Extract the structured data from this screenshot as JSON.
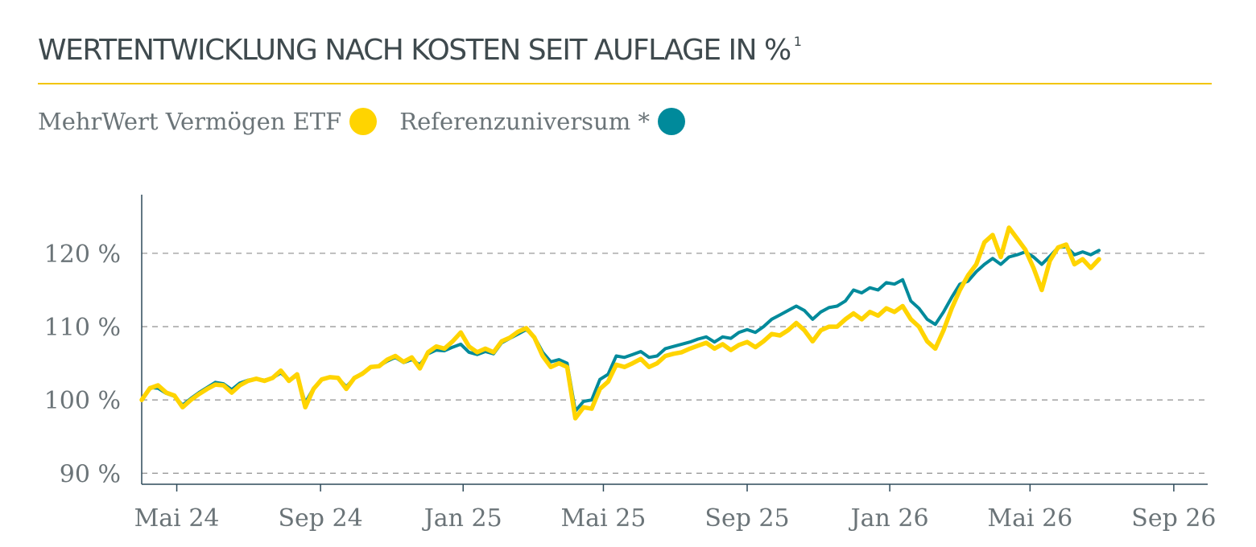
{
  "header": {
    "title": "WERTENTWICKLUNG NACH KOSTEN SEIT AUFLAGE IN %",
    "footnote": "1"
  },
  "legend": [
    {
      "label": "MehrWert Vermögen ETF",
      "color": "#ffd400"
    },
    {
      "label": "Referenzuniversum *",
      "color": "#008a9b"
    }
  ],
  "chart_data": {
    "type": "line",
    "grid": "horizontal dashed",
    "legend_position": "top-left",
    "xlim": [
      "2024-04-01",
      "2026-09-30"
    ],
    "ylim": [
      88.5,
      128
    ],
    "y_ticks": [
      {
        "value": 90,
        "label": "90 %"
      },
      {
        "value": 100,
        "label": "100 %"
      },
      {
        "value": 110,
        "label": "110 %"
      },
      {
        "value": 120,
        "label": "120 %"
      }
    ],
    "x_ticks": [
      {
        "date": "2024-05-01",
        "label": "Mai 24"
      },
      {
        "date": "2024-09-01",
        "label": "Sep 24"
      },
      {
        "date": "2025-01-01",
        "label": "Jan 25"
      },
      {
        "date": "2025-05-01",
        "label": "Mai 25"
      },
      {
        "date": "2025-09-01",
        "label": "Sep 25"
      },
      {
        "date": "2026-01-01",
        "label": "Jan 26"
      },
      {
        "date": "2026-05-01",
        "label": "Mai 26"
      },
      {
        "date": "2026-09-01",
        "label": "Sep 26"
      }
    ],
    "series": [
      {
        "name": "MehrWert Vermögen ETF",
        "color": "#ffd400",
        "points": [
          [
            "2024-04-01",
            100.0
          ],
          [
            "2024-04-08",
            101.6
          ],
          [
            "2024-04-15",
            102.0
          ],
          [
            "2024-04-22",
            101.0
          ],
          [
            "2024-04-29",
            100.6
          ],
          [
            "2024-05-06",
            99.0
          ],
          [
            "2024-05-13",
            100.0
          ],
          [
            "2024-05-20",
            100.8
          ],
          [
            "2024-05-27",
            101.5
          ],
          [
            "2024-06-03",
            102.1
          ],
          [
            "2024-06-10",
            102.0
          ],
          [
            "2024-06-17",
            101.0
          ],
          [
            "2024-06-24",
            102.0
          ],
          [
            "2024-07-01",
            102.6
          ],
          [
            "2024-07-08",
            102.9
          ],
          [
            "2024-07-15",
            102.6
          ],
          [
            "2024-07-22",
            103.0
          ],
          [
            "2024-07-29",
            104.0
          ],
          [
            "2024-08-05",
            102.6
          ],
          [
            "2024-08-12",
            103.5
          ],
          [
            "2024-08-19",
            99.0
          ],
          [
            "2024-08-26",
            101.5
          ],
          [
            "2024-09-02",
            102.8
          ],
          [
            "2024-09-09",
            103.1
          ],
          [
            "2024-09-16",
            103.0
          ],
          [
            "2024-09-23",
            101.5
          ],
          [
            "2024-09-30",
            103.0
          ],
          [
            "2024-10-07",
            103.6
          ],
          [
            "2024-10-14",
            104.5
          ],
          [
            "2024-10-21",
            104.6
          ],
          [
            "2024-10-28",
            105.5
          ],
          [
            "2024-11-04",
            106.0
          ],
          [
            "2024-11-11",
            105.2
          ],
          [
            "2024-11-18",
            105.8
          ],
          [
            "2024-11-25",
            104.3
          ],
          [
            "2024-12-02",
            106.5
          ],
          [
            "2024-12-09",
            107.3
          ],
          [
            "2024-12-16",
            107.0
          ],
          [
            "2024-12-23",
            108.0
          ],
          [
            "2024-12-30",
            109.2
          ],
          [
            "2025-01-06",
            107.3
          ],
          [
            "2025-01-13",
            106.5
          ],
          [
            "2025-01-20",
            107.0
          ],
          [
            "2025-01-27",
            106.5
          ],
          [
            "2025-02-03",
            108.0
          ],
          [
            "2025-02-10",
            108.5
          ],
          [
            "2025-02-17",
            109.3
          ],
          [
            "2025-02-24",
            109.8
          ],
          [
            "2025-03-03",
            108.5
          ],
          [
            "2025-03-10",
            106.0
          ],
          [
            "2025-03-17",
            104.5
          ],
          [
            "2025-03-24",
            105.0
          ],
          [
            "2025-03-31",
            104.5
          ],
          [
            "2025-04-07",
            97.5
          ],
          [
            "2025-04-14",
            99.0
          ],
          [
            "2025-04-21",
            98.8
          ],
          [
            "2025-04-28",
            101.5
          ],
          [
            "2025-05-05",
            102.5
          ],
          [
            "2025-05-12",
            104.8
          ],
          [
            "2025-05-19",
            104.5
          ],
          [
            "2025-05-26",
            105.0
          ],
          [
            "2025-06-02",
            105.6
          ],
          [
            "2025-06-09",
            104.5
          ],
          [
            "2025-06-16",
            105.0
          ],
          [
            "2025-06-23",
            106.0
          ],
          [
            "2025-06-30",
            106.3
          ],
          [
            "2025-07-07",
            106.5
          ],
          [
            "2025-07-14",
            107.0
          ],
          [
            "2025-07-21",
            107.4
          ],
          [
            "2025-07-28",
            107.8
          ],
          [
            "2025-08-04",
            107.0
          ],
          [
            "2025-08-11",
            107.6
          ],
          [
            "2025-08-18",
            106.8
          ],
          [
            "2025-08-25",
            107.5
          ],
          [
            "2025-09-01",
            107.9
          ],
          [
            "2025-09-08",
            107.2
          ],
          [
            "2025-09-15",
            108.0
          ],
          [
            "2025-09-22",
            109.0
          ],
          [
            "2025-09-29",
            108.8
          ],
          [
            "2025-10-06",
            109.5
          ],
          [
            "2025-10-13",
            110.5
          ],
          [
            "2025-10-20",
            109.5
          ],
          [
            "2025-10-27",
            108.0
          ],
          [
            "2025-11-03",
            109.5
          ],
          [
            "2025-11-10",
            110.0
          ],
          [
            "2025-11-17",
            110.0
          ],
          [
            "2025-11-24",
            111.0
          ],
          [
            "2025-12-01",
            111.8
          ],
          [
            "2025-12-08",
            111.0
          ],
          [
            "2025-12-15",
            112.0
          ],
          [
            "2025-12-22",
            111.5
          ],
          [
            "2025-12-29",
            112.5
          ],
          [
            "2026-01-05",
            112.0
          ],
          [
            "2026-01-12",
            112.8
          ],
          [
            "2026-01-19",
            111.0
          ],
          [
            "2026-01-26",
            110.0
          ],
          [
            "2026-02-02",
            108.0
          ],
          [
            "2026-02-09",
            107.0
          ],
          [
            "2026-02-16",
            109.5
          ],
          [
            "2026-02-23",
            112.5
          ],
          [
            "2026-03-02",
            115.0
          ],
          [
            "2026-03-09",
            117.0
          ],
          [
            "2026-03-16",
            118.5
          ],
          [
            "2026-03-23",
            121.5
          ],
          [
            "2026-03-30",
            122.5
          ],
          [
            "2026-04-06",
            119.5
          ],
          [
            "2026-04-13",
            123.5
          ],
          [
            "2026-04-20",
            122.0
          ],
          [
            "2026-04-27",
            120.5
          ],
          [
            "2026-05-04",
            118.0
          ],
          [
            "2026-05-11",
            115.0
          ],
          [
            "2026-05-18",
            119.0
          ],
          [
            "2026-05-25",
            120.8
          ],
          [
            "2026-06-01",
            121.2
          ],
          [
            "2026-06-08",
            118.5
          ],
          [
            "2026-06-15",
            119.2
          ],
          [
            "2026-06-22",
            118.0
          ],
          [
            "2026-06-29",
            119.2
          ]
        ]
      },
      {
        "name": "Referenzuniversum *",
        "color": "#008a9b",
        "points": [
          [
            "2024-04-01",
            100.0
          ],
          [
            "2024-04-08",
            101.7
          ],
          [
            "2024-04-15",
            101.6
          ],
          [
            "2024-04-22",
            100.9
          ],
          [
            "2024-04-29",
            100.5
          ],
          [
            "2024-05-06",
            99.3
          ],
          [
            "2024-05-13",
            100.2
          ],
          [
            "2024-05-20",
            101.0
          ],
          [
            "2024-05-27",
            101.7
          ],
          [
            "2024-06-03",
            102.4
          ],
          [
            "2024-06-10",
            102.2
          ],
          [
            "2024-06-17",
            101.4
          ],
          [
            "2024-06-24",
            102.3
          ],
          [
            "2024-07-01",
            102.7
          ],
          [
            "2024-07-08",
            102.9
          ],
          [
            "2024-07-15",
            102.7
          ],
          [
            "2024-07-22",
            103.0
          ],
          [
            "2024-07-29",
            103.7
          ],
          [
            "2024-08-05",
            102.7
          ],
          [
            "2024-08-12",
            103.3
          ],
          [
            "2024-08-19",
            99.6
          ],
          [
            "2024-08-26",
            101.6
          ],
          [
            "2024-09-02",
            102.8
          ],
          [
            "2024-09-09",
            103.1
          ],
          [
            "2024-09-16",
            103.0
          ],
          [
            "2024-09-23",
            101.8
          ],
          [
            "2024-09-30",
            103.0
          ],
          [
            "2024-10-07",
            103.7
          ],
          [
            "2024-10-14",
            104.5
          ],
          [
            "2024-10-21",
            104.6
          ],
          [
            "2024-10-28",
            105.3
          ],
          [
            "2024-11-04",
            105.8
          ],
          [
            "2024-11-11",
            105.1
          ],
          [
            "2024-11-18",
            105.5
          ],
          [
            "2024-11-25",
            104.8
          ],
          [
            "2024-12-02",
            106.3
          ],
          [
            "2024-12-09",
            106.8
          ],
          [
            "2024-12-16",
            106.7
          ],
          [
            "2024-12-23",
            107.2
          ],
          [
            "2024-12-30",
            107.6
          ],
          [
            "2025-01-06",
            106.5
          ],
          [
            "2025-01-13",
            106.2
          ],
          [
            "2025-01-20",
            106.6
          ],
          [
            "2025-01-27",
            106.3
          ],
          [
            "2025-02-03",
            107.8
          ],
          [
            "2025-02-10",
            108.4
          ],
          [
            "2025-02-17",
            109.0
          ],
          [
            "2025-02-24",
            109.6
          ],
          [
            "2025-03-03",
            108.6
          ],
          [
            "2025-03-10",
            106.5
          ],
          [
            "2025-03-17",
            105.2
          ],
          [
            "2025-03-24",
            105.5
          ],
          [
            "2025-03-31",
            105.0
          ],
          [
            "2025-04-07",
            98.5
          ],
          [
            "2025-04-14",
            99.8
          ],
          [
            "2025-04-21",
            100.0
          ],
          [
            "2025-04-28",
            102.8
          ],
          [
            "2025-05-05",
            103.5
          ],
          [
            "2025-05-12",
            106.0
          ],
          [
            "2025-05-19",
            105.8
          ],
          [
            "2025-05-26",
            106.2
          ],
          [
            "2025-06-02",
            106.6
          ],
          [
            "2025-06-09",
            105.8
          ],
          [
            "2025-06-16",
            106.0
          ],
          [
            "2025-06-23",
            107.0
          ],
          [
            "2025-06-30",
            107.3
          ],
          [
            "2025-07-07",
            107.6
          ],
          [
            "2025-07-14",
            107.9
          ],
          [
            "2025-07-21",
            108.3
          ],
          [
            "2025-07-28",
            108.6
          ],
          [
            "2025-08-04",
            107.9
          ],
          [
            "2025-08-11",
            108.6
          ],
          [
            "2025-08-18",
            108.4
          ],
          [
            "2025-08-25",
            109.2
          ],
          [
            "2025-09-01",
            109.6
          ],
          [
            "2025-09-08",
            109.2
          ],
          [
            "2025-09-15",
            110.0
          ],
          [
            "2025-09-22",
            111.0
          ],
          [
            "2025-09-29",
            111.6
          ],
          [
            "2025-10-06",
            112.2
          ],
          [
            "2025-10-13",
            112.8
          ],
          [
            "2025-10-20",
            112.2
          ],
          [
            "2025-10-27",
            111.0
          ],
          [
            "2025-11-03",
            112.0
          ],
          [
            "2025-11-10",
            112.6
          ],
          [
            "2025-11-17",
            112.8
          ],
          [
            "2025-11-24",
            113.5
          ],
          [
            "2025-12-01",
            115.0
          ],
          [
            "2025-12-08",
            114.6
          ],
          [
            "2025-12-15",
            115.3
          ],
          [
            "2025-12-22",
            115.0
          ],
          [
            "2025-12-29",
            116.0
          ],
          [
            "2026-01-05",
            115.8
          ],
          [
            "2026-01-12",
            116.4
          ],
          [
            "2026-01-19",
            113.5
          ],
          [
            "2026-01-26",
            112.5
          ],
          [
            "2026-02-02",
            111.0
          ],
          [
            "2026-02-09",
            110.3
          ],
          [
            "2026-02-16",
            112.0
          ],
          [
            "2026-02-23",
            114.0
          ],
          [
            "2026-03-02",
            115.8
          ],
          [
            "2026-03-09",
            116.2
          ],
          [
            "2026-03-16",
            117.5
          ],
          [
            "2026-03-23",
            118.5
          ],
          [
            "2026-03-30",
            119.3
          ],
          [
            "2026-04-06",
            118.5
          ],
          [
            "2026-04-13",
            119.5
          ],
          [
            "2026-04-20",
            119.8
          ],
          [
            "2026-04-27",
            120.2
          ],
          [
            "2026-05-04",
            119.5
          ],
          [
            "2026-05-11",
            118.5
          ],
          [
            "2026-05-18",
            119.6
          ],
          [
            "2026-05-25",
            120.8
          ],
          [
            "2026-06-01",
            120.9
          ],
          [
            "2026-06-08",
            119.8
          ],
          [
            "2026-06-15",
            120.2
          ],
          [
            "2026-06-22",
            119.8
          ],
          [
            "2026-06-29",
            120.4
          ]
        ]
      }
    ]
  }
}
